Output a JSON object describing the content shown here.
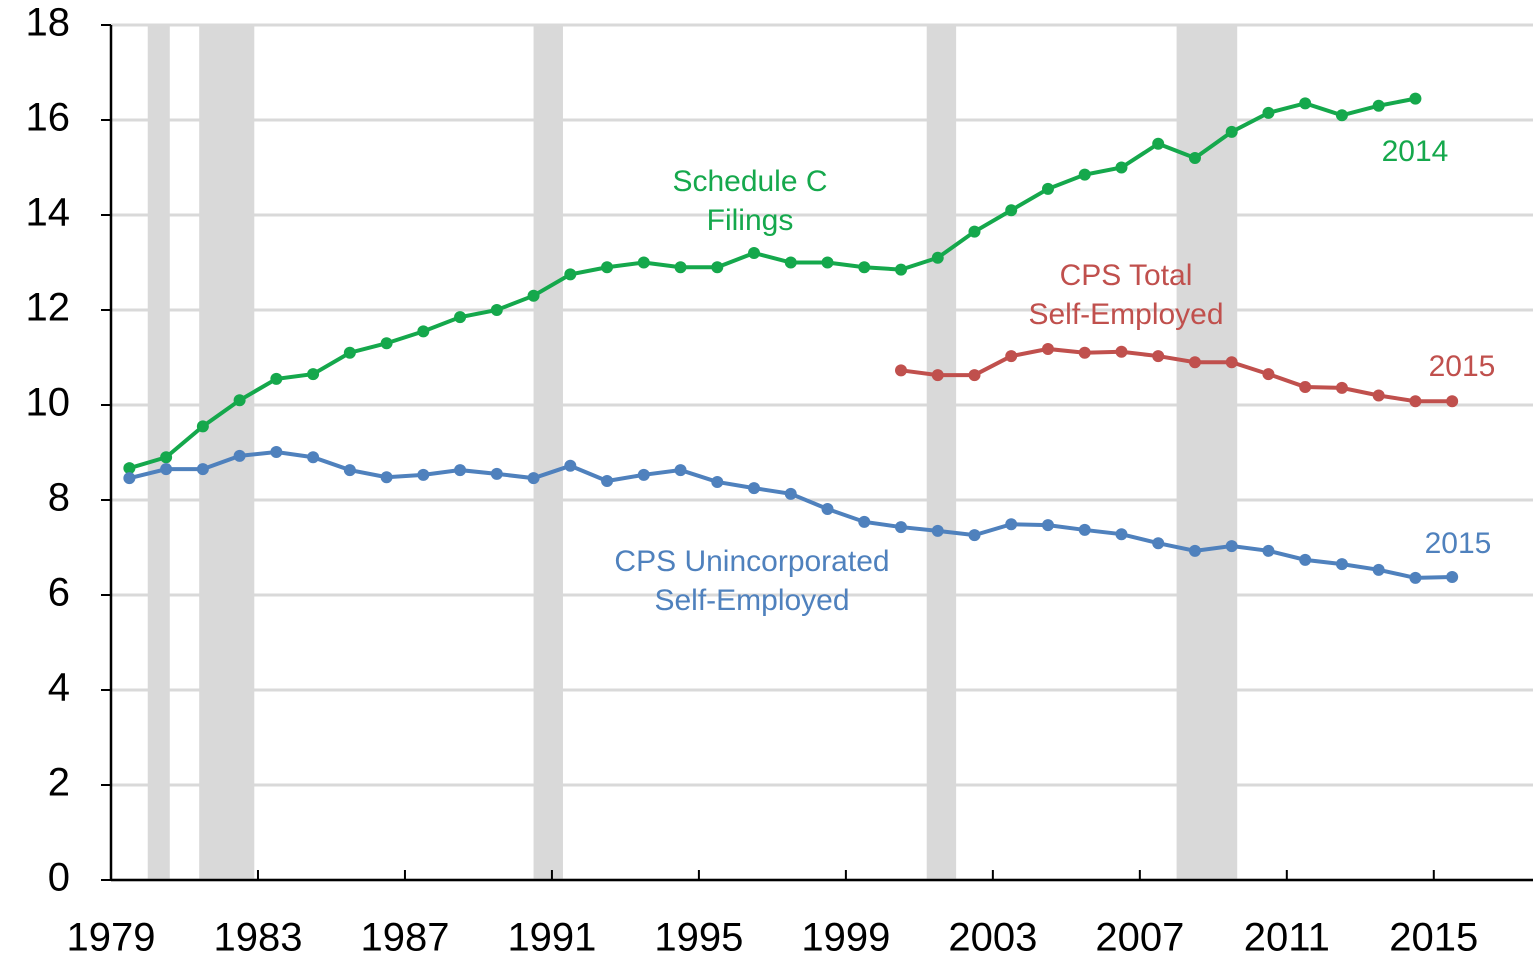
{
  "chart_data": {
    "type": "line",
    "xlim": [
      1979,
      2017.7
    ],
    "xticks": [
      1979,
      1983,
      1987,
      1991,
      1995,
      1999,
      2003,
      2007,
      2011,
      2015
    ],
    "ylim": [
      0,
      18
    ],
    "yticks": [
      0,
      2,
      4,
      6,
      8,
      10,
      12,
      14,
      16,
      18
    ],
    "grid": true,
    "shaded_periods": [
      [
        1980,
        1980.6
      ],
      [
        1981.4,
        1982.9
      ],
      [
        1990.5,
        1991.3
      ],
      [
        2001.2,
        2002.0
      ],
      [
        2008.0,
        2009.65
      ]
    ],
    "shade_color": "#d9d9d9",
    "series": [
      {
        "label": [
          "Schedule  C",
          "Filings"
        ],
        "end_label": "2014",
        "color": "#15a84c",
        "x": [
          1979.5,
          1980.5,
          1981.5,
          1982.5,
          1983.5,
          1984.5,
          1985.5,
          1986.5,
          1987.5,
          1988.5,
          1989.5,
          1990.5,
          1991.5,
          1992.5,
          1993.5,
          1994.5,
          1995.5,
          1996.5,
          1997.5,
          1998.5,
          1999.5,
          2000.5,
          2001.5,
          2002.5,
          2003.5,
          2004.5,
          2005.5,
          2006.5,
          2007.5,
          2008.5,
          2009.5,
          2010.5,
          2011.5,
          2012.5,
          2013.5,
          2014.5
        ],
        "values": [
          8.67,
          8.9,
          9.55,
          10.1,
          10.55,
          10.65,
          11.1,
          11.3,
          11.55,
          11.85,
          12.0,
          12.3,
          12.75,
          12.9,
          13.0,
          12.9,
          12.9,
          13.2,
          13.0,
          13.0,
          12.9,
          12.85,
          13.1,
          13.65,
          14.1,
          14.55,
          14.85,
          15.0,
          15.5,
          15.2,
          15.75,
          16.15,
          16.35,
          16.1,
          16.3,
          16.45
        ]
      },
      {
        "label": [
          "CPS Total",
          "Self-Employed"
        ],
        "end_label": "2015",
        "color": "#c0504d",
        "x": [
          2000.5,
          2001.5,
          2002.5,
          2003.5,
          2004.5,
          2005.5,
          2006.5,
          2007.5,
          2008.5,
          2009.5,
          2010.5,
          2011.5,
          2012.5,
          2013.5,
          2014.5,
          2015.5
        ],
        "values": [
          10.73,
          10.63,
          10.63,
          11.03,
          11.18,
          11.1,
          11.12,
          11.03,
          10.9,
          10.9,
          10.65,
          10.38,
          10.36,
          10.2,
          10.08,
          10.08
        ]
      },
      {
        "label": [
          "CPS Unincorporated",
          "Self-Employed"
        ],
        "end_label": "2015",
        "color": "#4f81bd",
        "x": [
          1979.5,
          1980.5,
          1981.5,
          1982.5,
          1983.5,
          1984.5,
          1985.5,
          1986.5,
          1987.5,
          1988.5,
          1989.5,
          1990.5,
          1991.5,
          1992.5,
          1993.5,
          1994.5,
          1995.5,
          1996.5,
          1997.5,
          1998.5,
          1999.5,
          2000.5,
          2001.5,
          2002.5,
          2003.5,
          2004.5,
          2005.5,
          2006.5,
          2007.5,
          2008.5,
          2009.5,
          2010.5,
          2011.5,
          2012.5,
          2013.5,
          2014.5,
          2015.5
        ],
        "values": [
          8.46,
          8.65,
          8.65,
          8.93,
          9.01,
          8.9,
          8.63,
          8.48,
          8.53,
          8.63,
          8.55,
          8.46,
          8.72,
          8.4,
          8.53,
          8.63,
          8.38,
          8.25,
          8.13,
          7.81,
          7.54,
          7.43,
          7.35,
          7.26,
          7.49,
          7.47,
          7.37,
          7.28,
          7.09,
          6.93,
          7.03,
          6.93,
          6.74,
          6.65,
          6.53,
          6.36,
          6.38
        ]
      }
    ]
  }
}
